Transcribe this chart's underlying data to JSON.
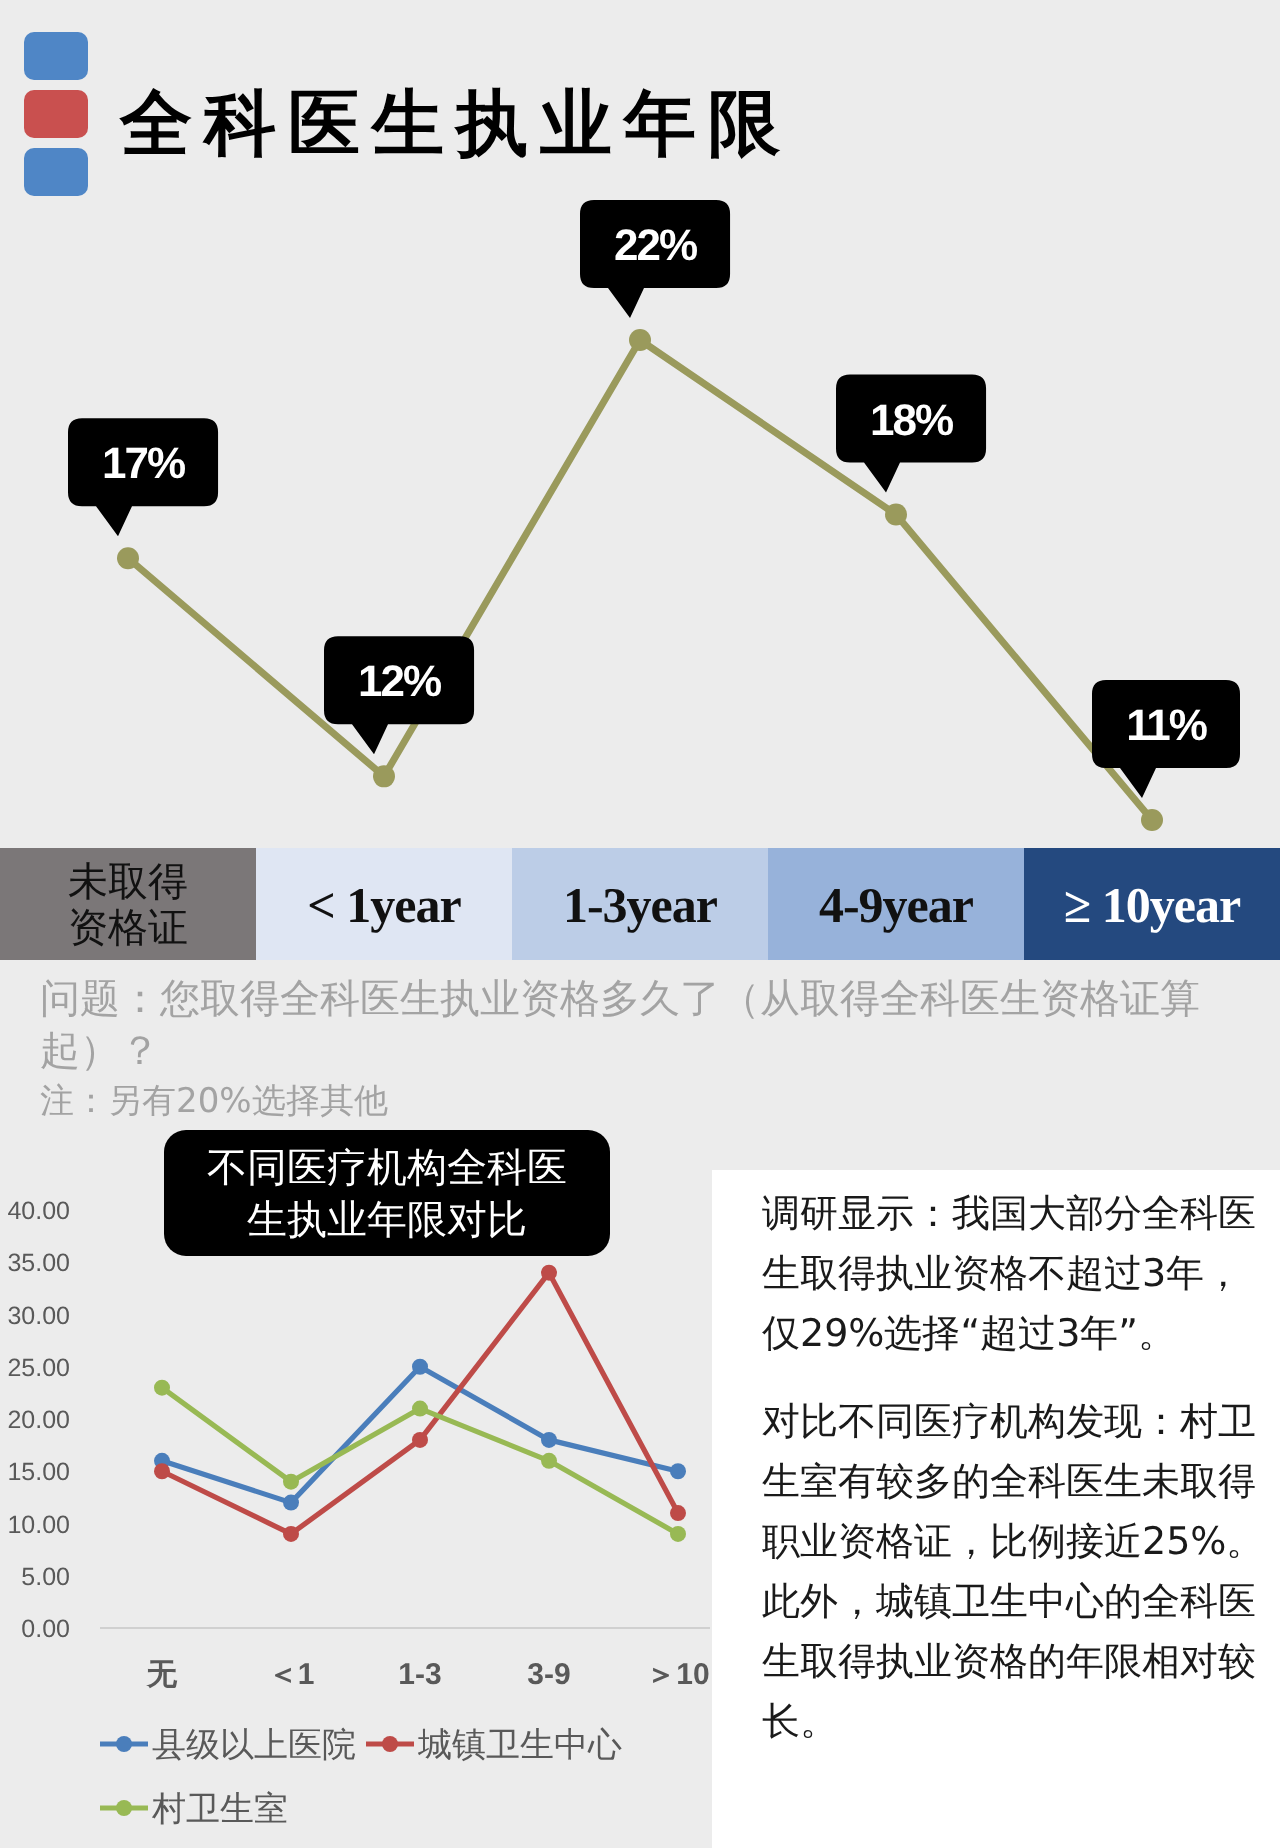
{
  "chart_data": [
    {
      "type": "line",
      "title": "全科医生执业年限",
      "categories": [
        "未取得资格证",
        "< 1year",
        "1-3year",
        "4-9year",
        "≥ 10year"
      ],
      "values": [
        17,
        12,
        22,
        18,
        11
      ],
      "value_labels": [
        "17%",
        "12%",
        "22%",
        "18%",
        "11%"
      ],
      "color": "#9a9a5c",
      "marker": "circle",
      "tick_labels": "x",
      "annotations": [
        "问题：您取得全科医生执业资格多久了（从取得全科医生资格证算起）？",
        "注：另有20%选择其他"
      ]
    },
    {
      "type": "line",
      "title": "不同医疗机构全科医生执业年限对比",
      "categories": [
        "无",
        "＜1",
        "1-3",
        "3-9",
        "＞10"
      ],
      "series": [
        {
          "name": "县级以上医院",
          "color": "#4a7ebb",
          "values": [
            16,
            12,
            25,
            18,
            15
          ]
        },
        {
          "name": "城镇卫生中心",
          "color": "#be4b48",
          "values": [
            15,
            9,
            18,
            34,
            11
          ]
        },
        {
          "name": "村卫生室",
          "color": "#98b954",
          "values": [
            23,
            14,
            21,
            16,
            9
          ]
        }
      ],
      "ylim": [
        0,
        40
      ],
      "yticks": [
        {
          "value": 0,
          "label": "0.00"
        },
        {
          "value": 5,
          "label": "5.00"
        },
        {
          "value": 10,
          "label": "10.00"
        },
        {
          "value": 15,
          "label": "15.00"
        },
        {
          "value": 20,
          "label": "20.00"
        },
        {
          "value": 25,
          "label": "25.00"
        },
        {
          "value": 30,
          "label": "30.00"
        },
        {
          "value": 35,
          "label": "35.00"
        },
        {
          "value": 40,
          "label": "40.00"
        }
      ],
      "marker": "circle",
      "legend": "bottom"
    },
    {
      "type": "other",
      "annotations": [
        "调研显示：我国大部分全科医生取得执业资格不超过3年，仅29%选择“超过3年”。",
        "对比不同医疗机构发现：村卫生室有较多的全科医生未取得职业资格证，比例接近25%。此外，城镇卫生中心的全科医生取得执业资格的年限相对较长。"
      ]
    }
  ]
}
